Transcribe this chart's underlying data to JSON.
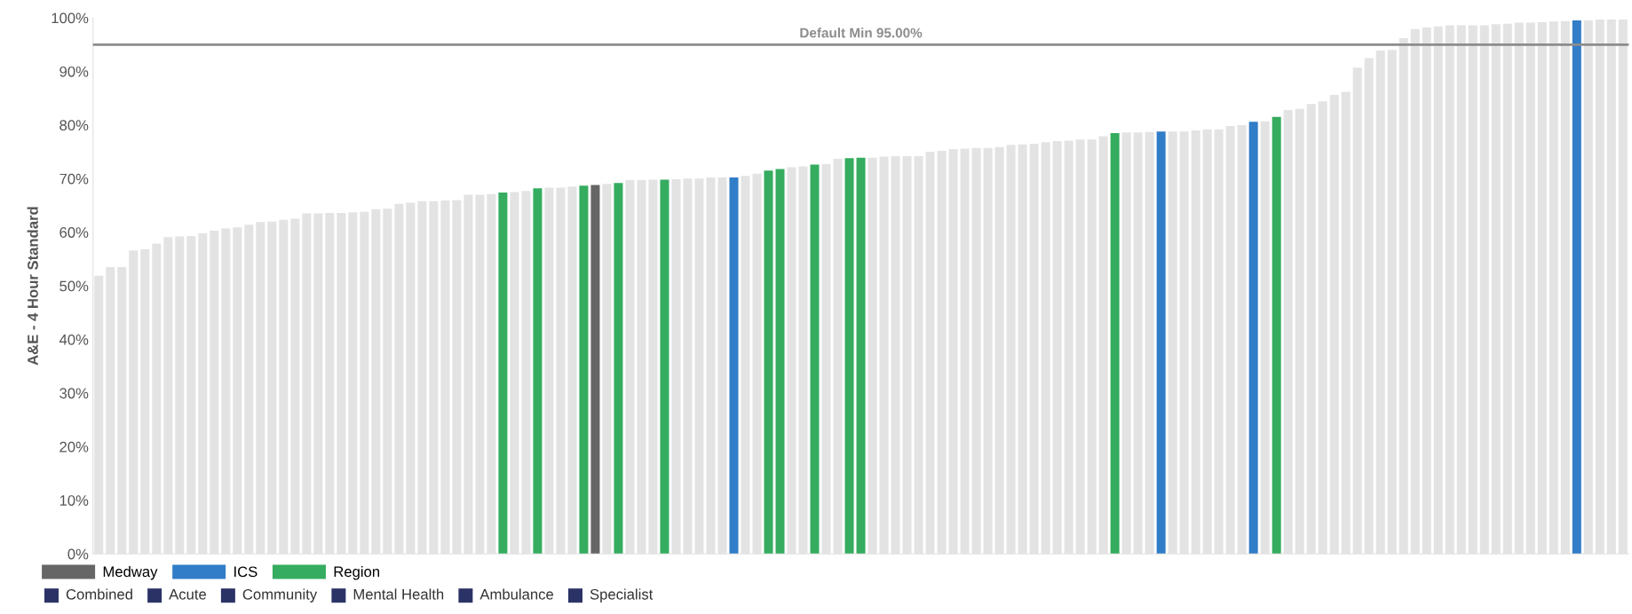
{
  "chart_data": {
    "type": "bar",
    "ylabel": "A&E - 4 Hour Standard",
    "categories": [
      null,
      null,
      null,
      null,
      null,
      null,
      null,
      null,
      null,
      null,
      null,
      null,
      null,
      null,
      null,
      null,
      null,
      null,
      null,
      null,
      null,
      null,
      null,
      null,
      null,
      null,
      null,
      null,
      null,
      null,
      null,
      null,
      null,
      null,
      null,
      null,
      null,
      null,
      null,
      null,
      null,
      null,
      null,
      null,
      null,
      null,
      null,
      null,
      null,
      null,
      null,
      null,
      null,
      null,
      null,
      null,
      null,
      null,
      null,
      null,
      null,
      null,
      null,
      null,
      null,
      null,
      null,
      null,
      null,
      null,
      null,
      null,
      null,
      null,
      null,
      null,
      null,
      null,
      null,
      null,
      null,
      null,
      null,
      null,
      null,
      null,
      null,
      null,
      null,
      null,
      null,
      null,
      null,
      null,
      null,
      null,
      null,
      null,
      null,
      null,
      null,
      null,
      null,
      null,
      null,
      null,
      null,
      null,
      null,
      null,
      null,
      null,
      null,
      null,
      null,
      null,
      null,
      null,
      null,
      null,
      null,
      null,
      null,
      null,
      null,
      null,
      null,
      null,
      null,
      null,
      null,
      null,
      null
    ],
    "series": [
      {
        "color": "#e3e3e3",
        "values": [
          51.9,
          53.5,
          53.5,
          56.6,
          56.8,
          57.9,
          59.1,
          59.2,
          59.3,
          59.8,
          60.3,
          60.7,
          60.9,
          61.4,
          61.9,
          62.0,
          62.3,
          62.5,
          63.5,
          63.5,
          63.6,
          63.6,
          63.7,
          63.8,
          64.3,
          64.4,
          65.3,
          65.5,
          65.8,
          65.8,
          65.9,
          66.0,
          67.0,
          67.0,
          67.1,
          null,
          67.5,
          67.7,
          null,
          68.3,
          68.3,
          68.5,
          null,
          null,
          69.0,
          null,
          69.7,
          69.7,
          69.8,
          null,
          69.9,
          70.0,
          70.0,
          70.2,
          70.2,
          null,
          70.5,
          70.9,
          null,
          null,
          72.1,
          72.3,
          null,
          72.7,
          73.7,
          null,
          null,
          73.9,
          74.1,
          74.2,
          74.2,
          74.2,
          75.0,
          75.2,
          75.5,
          75.6,
          75.7,
          75.7,
          75.9,
          76.3,
          76.4,
          76.5,
          76.8,
          77.0,
          77.1,
          77.3,
          77.3,
          77.9,
          null,
          78.6,
          78.6,
          78.7,
          null,
          78.8,
          78.8,
          79.0,
          79.2,
          79.2,
          79.8,
          80.0,
          null,
          80.7,
          null,
          82.8,
          83.0,
          83.9,
          84.4,
          85.6,
          86.2,
          90.7,
          92.5,
          93.9,
          94.0,
          96.2,
          97.9,
          98.2,
          98.4,
          98.6,
          98.6,
          98.6,
          98.6,
          98.8,
          98.9,
          99.1,
          99.1,
          99.2,
          99.3,
          99.4,
          null,
          99.5,
          99.7,
          99.7,
          99.7
        ]
      },
      {
        "name": "Medway",
        "color": "#666666",
        "values": [
          null,
          null,
          null,
          null,
          null,
          null,
          null,
          null,
          null,
          null,
          null,
          null,
          null,
          null,
          null,
          null,
          null,
          null,
          null,
          null,
          null,
          null,
          null,
          null,
          null,
          null,
          null,
          null,
          null,
          null,
          null,
          null,
          null,
          null,
          null,
          null,
          null,
          null,
          null,
          null,
          null,
          null,
          null,
          68.8,
          null,
          null,
          null,
          null,
          null,
          null,
          null,
          null,
          null,
          null,
          null,
          null,
          null,
          null,
          null,
          null,
          null,
          null,
          null,
          null,
          null,
          null,
          null,
          null,
          null,
          null,
          null,
          null,
          null,
          null,
          null,
          null,
          null,
          null,
          null,
          null,
          null,
          null,
          null,
          null,
          null,
          null,
          null,
          null,
          null,
          null,
          null,
          null,
          null,
          null,
          null,
          null,
          null,
          null,
          null,
          null,
          null,
          null,
          null,
          null,
          null,
          null,
          null,
          null,
          null,
          null,
          null,
          null,
          null,
          null,
          null,
          null,
          null,
          null,
          null,
          null,
          null,
          null,
          null,
          null,
          null,
          null,
          null,
          null,
          null,
          null,
          null,
          null,
          null
        ]
      },
      {
        "name": "ICS",
        "color": "#317dc7",
        "values": [
          null,
          null,
          null,
          null,
          null,
          null,
          null,
          null,
          null,
          null,
          null,
          null,
          null,
          null,
          null,
          null,
          null,
          null,
          null,
          null,
          null,
          null,
          null,
          null,
          null,
          null,
          null,
          null,
          null,
          null,
          null,
          null,
          null,
          null,
          null,
          null,
          null,
          null,
          null,
          null,
          null,
          null,
          null,
          null,
          null,
          null,
          null,
          null,
          null,
          null,
          null,
          null,
          null,
          null,
          null,
          70.2,
          null,
          null,
          null,
          null,
          null,
          null,
          null,
          null,
          null,
          null,
          null,
          null,
          null,
          null,
          null,
          null,
          null,
          null,
          null,
          null,
          null,
          null,
          null,
          null,
          null,
          null,
          null,
          null,
          null,
          null,
          null,
          null,
          null,
          null,
          null,
          null,
          78.8,
          null,
          null,
          null,
          null,
          null,
          null,
          null,
          80.6,
          null,
          null,
          null,
          null,
          null,
          null,
          null,
          null,
          null,
          null,
          null,
          null,
          null,
          null,
          null,
          null,
          null,
          null,
          null,
          null,
          null,
          null,
          null,
          null,
          null,
          null,
          null,
          99.5,
          null,
          null,
          null,
          null
        ]
      },
      {
        "name": "Region",
        "color": "#35ac5f",
        "values": [
          null,
          null,
          null,
          null,
          null,
          null,
          null,
          null,
          null,
          null,
          null,
          null,
          null,
          null,
          null,
          null,
          null,
          null,
          null,
          null,
          null,
          null,
          null,
          null,
          null,
          null,
          null,
          null,
          null,
          null,
          null,
          null,
          null,
          null,
          null,
          67.4,
          null,
          null,
          68.2,
          null,
          null,
          null,
          68.7,
          null,
          null,
          69.2,
          null,
          null,
          null,
          69.8,
          null,
          null,
          null,
          null,
          null,
          null,
          null,
          null,
          71.5,
          71.8,
          null,
          null,
          72.6,
          null,
          null,
          73.8,
          73.9,
          null,
          null,
          null,
          null,
          null,
          null,
          null,
          null,
          null,
          null,
          null,
          null,
          null,
          null,
          null,
          null,
          null,
          null,
          null,
          null,
          null,
          78.5,
          null,
          null,
          null,
          null,
          null,
          null,
          null,
          null,
          null,
          null,
          null,
          null,
          null,
          81.5,
          null,
          null,
          null,
          null,
          null,
          null,
          null,
          null,
          null,
          null,
          null,
          null,
          null,
          null,
          null,
          null,
          null,
          null,
          null,
          null,
          null,
          null,
          null,
          null,
          null,
          null,
          null,
          null,
          null,
          null
        ]
      }
    ],
    "ylim": [
      0,
      100
    ],
    "yticks": [
      {
        "value": 0,
        "label": "0%"
      },
      {
        "value": 10,
        "label": "10%"
      },
      {
        "value": 20,
        "label": "20%"
      },
      {
        "value": 30,
        "label": "30%"
      },
      {
        "value": 40,
        "label": "40%"
      },
      {
        "value": 50,
        "label": "50%"
      },
      {
        "value": 60,
        "label": "60%"
      },
      {
        "value": 70,
        "label": "70%"
      },
      {
        "value": 80,
        "label": "80%"
      },
      {
        "value": 90,
        "label": "90%"
      },
      {
        "value": 100,
        "label": "100%"
      }
    ],
    "ref_lines": [
      {
        "axis": "y",
        "value": 95,
        "label": "Default Min 95.00%",
        "color": "#8c8c8c",
        "line_style": "solid"
      }
    ],
    "legend": "bottom left",
    "tick_labels": "y",
    "annotations": [
      "Combined",
      "Acute",
      "Community",
      "Mental Health",
      "Ambulance",
      "Specialist"
    ]
  }
}
